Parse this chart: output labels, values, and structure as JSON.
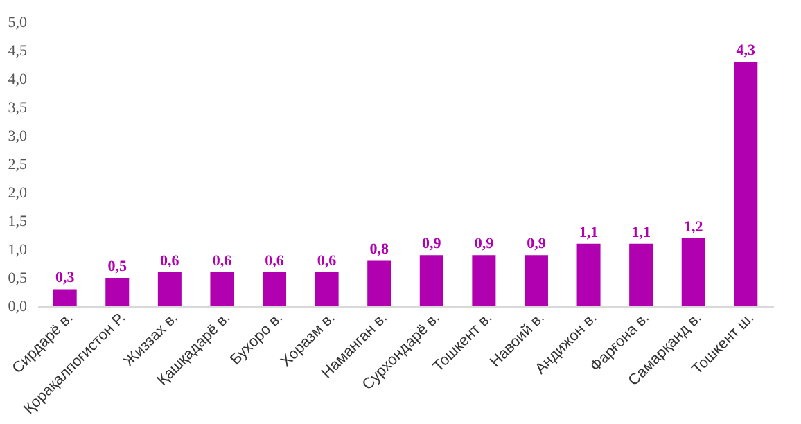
{
  "chart_data": {
    "type": "bar",
    "categories": [
      "Сирдарё в.",
      "Қорақалпоғистон Р.",
      "Жиззах в.",
      "Қашқадарё в.",
      "Бухоро в.",
      "Хоразм в.",
      "Наманган в.",
      "Сурхондарё в.",
      "Тошкент в.",
      "Навоий в.",
      "Андижон в.",
      "Фарғона в.",
      "Самарқанд в.",
      "Тошкент ш."
    ],
    "values": [
      0.3,
      0.5,
      0.6,
      0.6,
      0.6,
      0.6,
      0.8,
      0.9,
      0.9,
      0.9,
      1.1,
      1.1,
      1.2,
      4.3
    ],
    "value_labels": [
      "0,3",
      "0,5",
      "0,6",
      "0,6",
      "0,6",
      "0,6",
      "0,8",
      "0,9",
      "0,9",
      "0,9",
      "1,1",
      "1,1",
      "1,2",
      "4,3"
    ],
    "color": "#b000b0",
    "ylim": [
      0,
      5
    ],
    "yticks": [
      {
        "value": 0,
        "label": "0,0"
      },
      {
        "value": 0.5,
        "label": "0,5"
      },
      {
        "value": 1,
        "label": "1,0"
      },
      {
        "value": 1.5,
        "label": "1,5"
      },
      {
        "value": 2,
        "label": "2,0"
      },
      {
        "value": 2.5,
        "label": "2,5"
      },
      {
        "value": 3,
        "label": "3,0"
      },
      {
        "value": 3.5,
        "label": "3,5"
      },
      {
        "value": 4,
        "label": "4,0"
      },
      {
        "value": 4.5,
        "label": "4,5"
      },
      {
        "value": 5,
        "label": "5,0"
      }
    ],
    "grid": false
  }
}
